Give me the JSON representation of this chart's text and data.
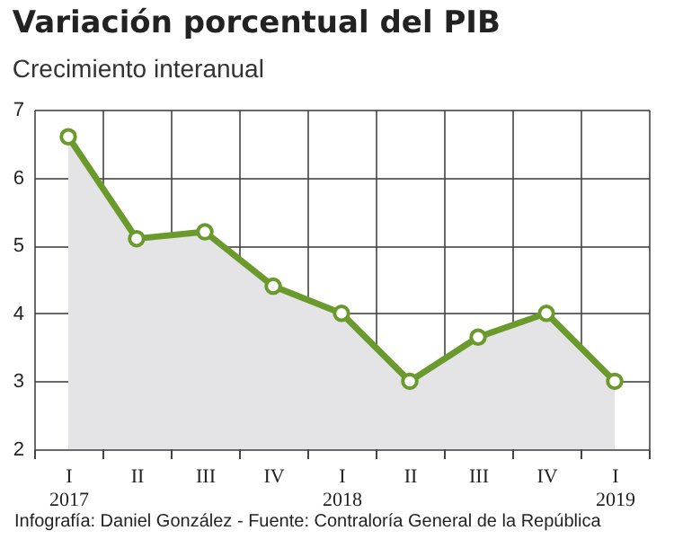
{
  "chart_data": {
    "type": "area",
    "title": "Variación porcentual del PIB",
    "subtitle": "Crecimiento interanual",
    "categories": [
      "I 2017",
      "II",
      "III",
      "IV",
      "I 2018",
      "II",
      "III",
      "IV",
      "I 2019"
    ],
    "series": [
      {
        "color": "#6b9a2c",
        "values": [
          6.6,
          5.1,
          5.2,
          4.4,
          4.0,
          3.0,
          3.65,
          4.0,
          3.0
        ]
      }
    ],
    "ylim": [
      2,
      7
    ],
    "yticks": [
      2,
      3,
      4,
      5,
      6,
      7
    ],
    "grid": true,
    "marker": "circle",
    "line_style": "solid",
    "annotations": [
      "Infografía: Daniel González - Fuente: Contraloría General de la República"
    ]
  }
}
